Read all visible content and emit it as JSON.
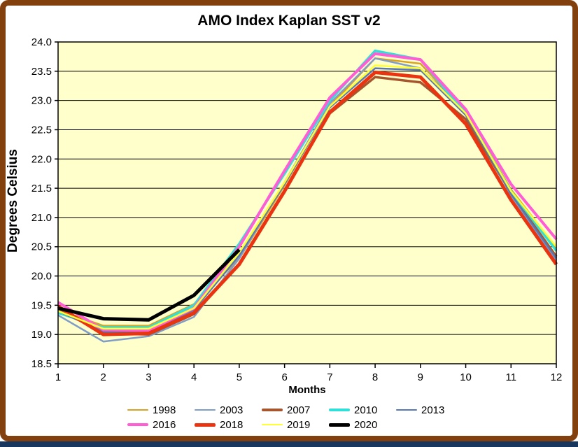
{
  "window": {
    "frame_color": "#83400F",
    "bottom_bar_color": "#17375E",
    "background": "#FFFFFF"
  },
  "chart_data": {
    "type": "line",
    "title": "AMO Index Kaplan SST v2",
    "xlabel": "Months",
    "ylabel": "Degrees Celsius",
    "plot_bg": "#FFFFCC",
    "grid": "horizontal",
    "legend_position": "bottom",
    "xlim": [
      1,
      12
    ],
    "ylim": [
      18.5,
      24.0
    ],
    "xticks": [
      "1",
      "2",
      "3",
      "4",
      "5",
      "6",
      "7",
      "8",
      "9",
      "10",
      "11",
      "12"
    ],
    "yticks": [
      "24.0",
      "23.5",
      "23.0",
      "22.5",
      "22.0",
      "21.5",
      "21.0",
      "20.5",
      "20.0",
      "19.5",
      "19.0",
      "18.5"
    ],
    "x": [
      1,
      2,
      3,
      4,
      5,
      6,
      7,
      8,
      9,
      10,
      11,
      12
    ],
    "series": [
      {
        "name": "1998",
        "color": "#DAA221",
        "width": 2.5,
        "values": [
          19.42,
          19.15,
          19.15,
          19.52,
          20.3,
          21.55,
          22.9,
          23.72,
          23.63,
          22.8,
          21.48,
          20.48
        ]
      },
      {
        "name": "2003",
        "color": "#7F9DC9",
        "width": 2.5,
        "values": [
          19.33,
          18.88,
          18.97,
          19.3,
          20.3,
          21.6,
          22.95,
          23.72,
          23.55,
          22.82,
          21.38,
          20.27
        ]
      },
      {
        "name": "2007",
        "color": "#A6552D",
        "width": 3.5,
        "values": [
          19.45,
          19.02,
          19.0,
          19.35,
          20.2,
          21.45,
          22.78,
          23.4,
          23.31,
          22.68,
          21.42,
          20.33
        ]
      },
      {
        "name": "2010",
        "color": "#30E0D8",
        "width": 3.5,
        "values": [
          19.37,
          19.12,
          19.12,
          19.5,
          20.55,
          21.75,
          23.0,
          23.85,
          23.7,
          22.78,
          21.45,
          20.43
        ]
      },
      {
        "name": "2013",
        "color": "#5878B4",
        "width": 2.5,
        "values": [
          19.4,
          19.05,
          19.03,
          19.42,
          20.35,
          21.57,
          22.88,
          23.55,
          23.52,
          22.75,
          21.4,
          20.3
        ]
      },
      {
        "name": "2016",
        "color": "#FF5CD6",
        "width": 4,
        "values": [
          19.55,
          19.08,
          19.07,
          19.45,
          20.5,
          21.8,
          23.05,
          23.8,
          23.7,
          22.85,
          21.57,
          20.63
        ]
      },
      {
        "name": "2018",
        "color": "#E93311",
        "width": 5,
        "values": [
          19.48,
          19.0,
          19.02,
          19.37,
          20.2,
          21.45,
          22.8,
          23.48,
          23.4,
          22.6,
          21.3,
          20.2
        ]
      },
      {
        "name": "2019",
        "color": "#FFFF33",
        "width": 2.5,
        "values": [
          19.4,
          19.1,
          19.1,
          19.45,
          20.4,
          21.6,
          22.9,
          23.6,
          23.55,
          22.78,
          21.45,
          20.5
        ]
      },
      {
        "name": "2020",
        "color": "#000000",
        "width": 5,
        "values": [
          19.45,
          19.27,
          19.25,
          19.67,
          20.45
        ]
      }
    ]
  }
}
